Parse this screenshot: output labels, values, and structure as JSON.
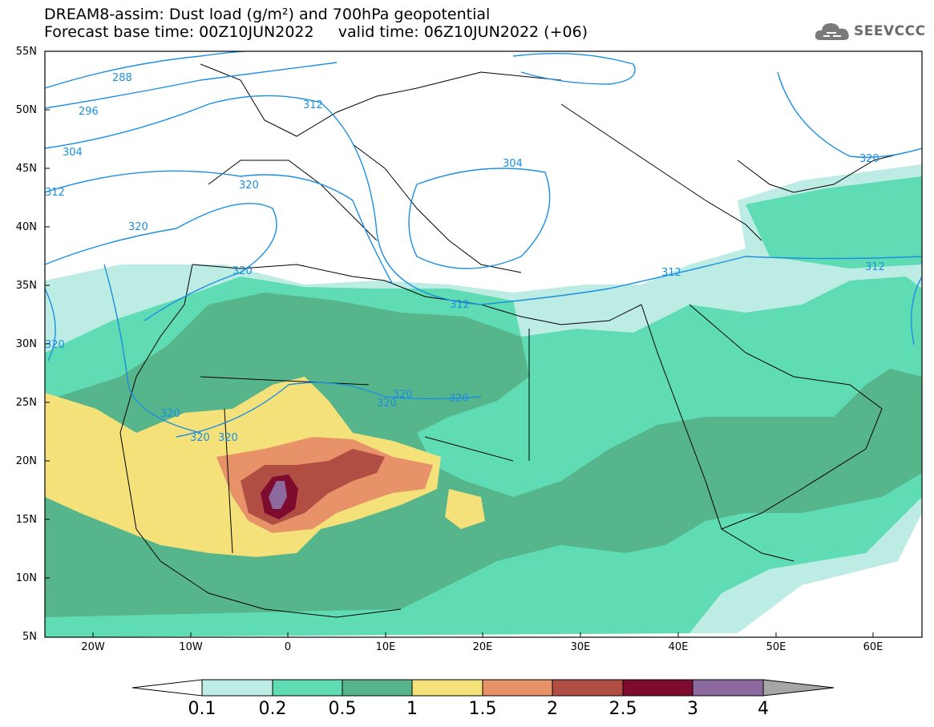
{
  "title": {
    "line1": "DREAM8-assim: Dust load (g/m²) and 700hPa geopotential",
    "line2": "Forecast base time: 00Z10JUN2022     valid time: 06Z10JUN2022 (+06)"
  },
  "logo": {
    "text": "SEEVCCC",
    "icon": "cloud-icon"
  },
  "axes": {
    "lat_labels": [
      "55N",
      "50N",
      "45N",
      "40N",
      "35N",
      "30N",
      "25N",
      "20N",
      "15N",
      "10N",
      "5N"
    ],
    "lon_labels": [
      "20W",
      "10W",
      "0",
      "10E",
      "20E",
      "30E",
      "40E",
      "50E",
      "60E"
    ]
  },
  "contours": {
    "labels": [
      "288",
      "296",
      "304",
      "312",
      "312",
      "320",
      "320",
      "320",
      "304",
      "312",
      "312",
      "320",
      "320",
      "320",
      "320",
      "320",
      "320",
      "320",
      "312",
      "320"
    ]
  },
  "colorbar": {
    "levels": [
      "0.1",
      "0.2",
      "0.5",
      "1",
      "1.5",
      "2",
      "2.5",
      "3",
      "4"
    ],
    "colors": [
      "#bdece4",
      "#5fdcb3",
      "#57b58c",
      "#f5e17a",
      "#e8926a",
      "#b14e44",
      "#7d0c2e",
      "#8c6aa0",
      "#a6a6a6"
    ],
    "contour_color": "#1c8fe0"
  }
}
